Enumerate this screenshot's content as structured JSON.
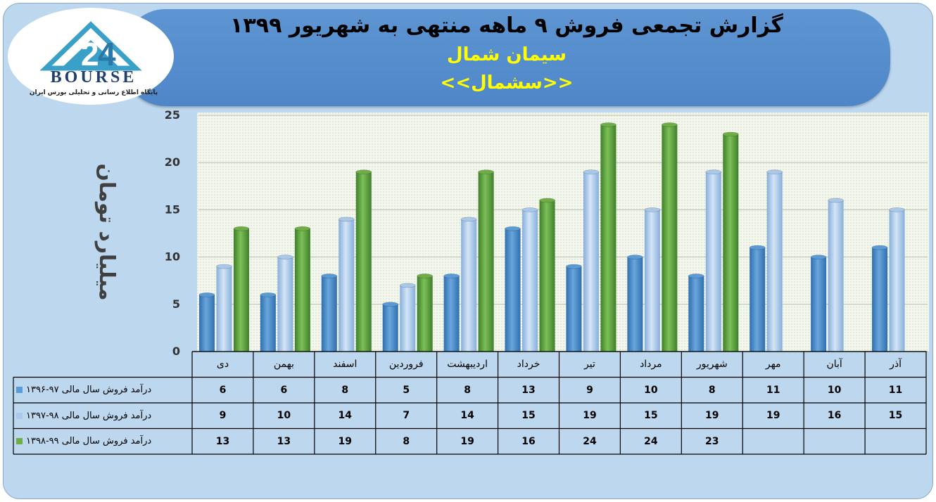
{
  "header": {
    "title": "گزارش تجمعی فروش ۹ ماهه منتهی به شهریور ۱۳۹۹",
    "company": "سیمان شمال",
    "symbol": "<<سشمال>>"
  },
  "logo": {
    "name": "BOURSE",
    "subtitle": "پایگاه اطلاع رسانی و تحلیلی بورس ایران"
  },
  "colors": {
    "series1": "#5b9bd5",
    "series2": "#a9c8ea",
    "series3": "#70ad47"
  },
  "chart_data": {
    "type": "bar",
    "ylabel": "میلیارد تومان",
    "ylim": [
      0,
      25
    ],
    "yticks": [
      0,
      5,
      10,
      15,
      20,
      25
    ],
    "grid": true,
    "legend": "data-table-left",
    "categories": [
      "دی",
      "بهمن",
      "اسفند",
      "فروردین",
      "اردیبهشت",
      "خرداد",
      "تیر",
      "مرداد",
      "شهریور",
      "مهر",
      "آبان",
      "آذر"
    ],
    "series": [
      {
        "name": "درآمد فروش سال مالی ۹۷-۱۳۹۶",
        "values": [
          6,
          6,
          8,
          5,
          8,
          13,
          9,
          10,
          8,
          11,
          10,
          11
        ]
      },
      {
        "name": "درآمد فروش سال مالی ۹۸-۱۳۹۷",
        "values": [
          9,
          10,
          14,
          7,
          14,
          15,
          19,
          15,
          19,
          19,
          16,
          15
        ]
      },
      {
        "name": "درآمد فروش سال مالی ۹۹-۱۳۹۸",
        "values": [
          13,
          13,
          19,
          8,
          19,
          16,
          24,
          24,
          23,
          null,
          null,
          null
        ]
      }
    ]
  }
}
